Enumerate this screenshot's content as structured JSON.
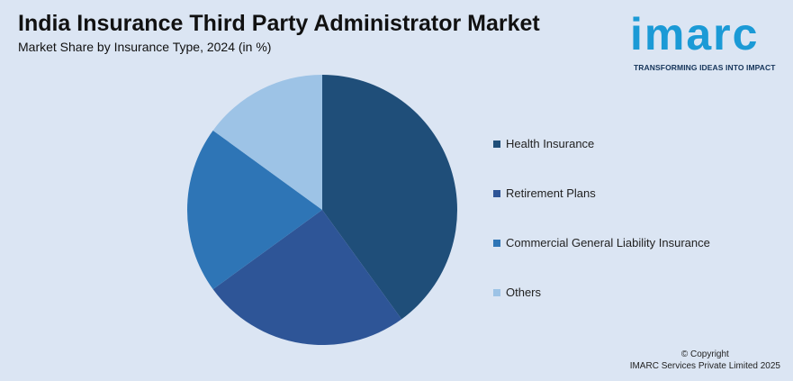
{
  "header": {
    "title": "India Insurance Third Party Administrator Market",
    "subtitle": "Market Share by Insurance Type, 2024 (in %)"
  },
  "logo": {
    "word": "imarc",
    "tagline": "TRANSFORMING IDEAS INTO IMPACT"
  },
  "footer": {
    "line1": "© Copyright",
    "line2": "IMARC Services Private Limited 2025"
  },
  "colors": {
    "background": "#dbe5f3",
    "health": "#1f4e79",
    "retirement": "#2e5597",
    "commercial": "#2e75b6",
    "others": "#9dc3e6"
  },
  "chart_data": {
    "type": "pie",
    "title": "",
    "slices": [
      {
        "label": "Health Insurance",
        "value": 40,
        "color": "#1f4e79"
      },
      {
        "label": "Retirement Plans",
        "value": 25,
        "color": "#2e5597"
      },
      {
        "label": "Commercial General Liability Insurance",
        "value": 20,
        "color": "#2e75b6"
      },
      {
        "label": "Others",
        "value": 15,
        "color": "#9dc3e6"
      }
    ],
    "legend_position": "right"
  }
}
